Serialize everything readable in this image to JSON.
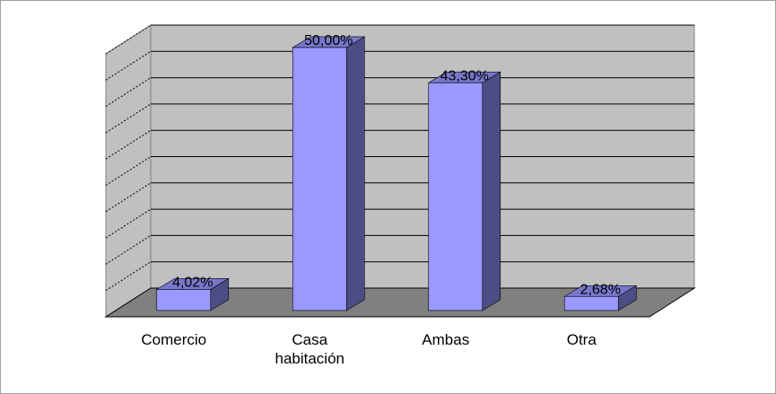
{
  "chart_data": {
    "type": "bar3d",
    "categories": [
      "Comercio",
      "Casa habitación",
      "Ambas",
      "Otra"
    ],
    "values": [
      4.02,
      50,
      43.3,
      2.68
    ],
    "value_labels": [
      "4,02%",
      "50,00%",
      "43,30%",
      "2,68%"
    ],
    "color": "#9999ff",
    "ylim": [
      0,
      50
    ],
    "yticks": [
      0,
      5,
      10,
      15,
      20,
      25,
      30,
      35,
      40,
      45,
      50
    ],
    "grid": true
  }
}
